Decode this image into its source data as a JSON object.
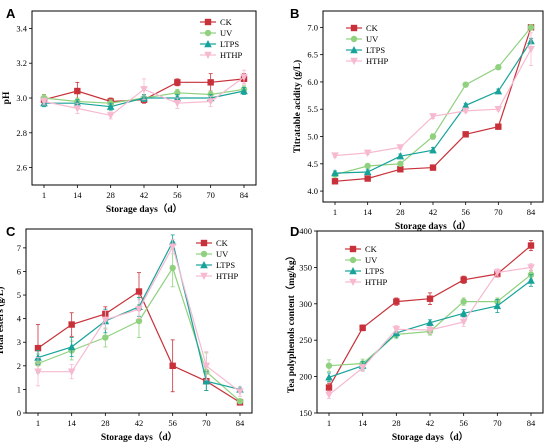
{
  "colors": {
    "CK": "#c8313a",
    "UV": "#8fd17e",
    "LTPS": "#18a39a",
    "HTHP": "#f7b9d0"
  },
  "chart_data": [
    {
      "type": "line",
      "panel": "A",
      "xlabel": "Storage days（d）",
      "ylabel": "pH",
      "x": [
        "1",
        "14",
        "28",
        "42",
        "56",
        "70",
        "84"
      ],
      "ylim": [
        2.5,
        3.5
      ],
      "yticks": [
        "2.6",
        "2.8",
        "3.0",
        "3.2",
        "3.4"
      ],
      "legend": "top-right",
      "series": [
        {
          "name": "CK",
          "values": [
            2.99,
            3.04,
            2.98,
            2.99,
            3.09,
            3.09,
            3.11
          ],
          "err": [
            0.03,
            0.05,
            0.02,
            0.02,
            0.02,
            0.05,
            0.03
          ]
        },
        {
          "name": "UV",
          "values": [
            3.0,
            2.98,
            2.97,
            3.0,
            3.03,
            3.02,
            3.05
          ],
          "err": [
            0.02,
            0.02,
            0.02,
            0.02,
            0.02,
            0.02,
            0.02
          ]
        },
        {
          "name": "LTPS",
          "values": [
            2.97,
            2.97,
            2.95,
            3.0,
            3.0,
            3.0,
            3.04
          ],
          "err": [
            0.02,
            0.02,
            0.02,
            0.02,
            0.02,
            0.02,
            0.02
          ]
        },
        {
          "name": "HTHP",
          "values": [
            2.98,
            2.94,
            2.9,
            3.05,
            2.97,
            2.98,
            3.12
          ],
          "err": [
            0.02,
            0.03,
            0.02,
            0.06,
            0.03,
            0.03,
            0.04
          ]
        }
      ]
    },
    {
      "type": "line",
      "panel": "B",
      "xlabel": "Storage days（d）",
      "ylabel": "Titratable acidity (g/L)",
      "x": [
        "1",
        "14",
        "28",
        "42",
        "56",
        "70",
        "84"
      ],
      "ylim": [
        3.8,
        7.3
      ],
      "yticks": [
        "4.0",
        "4.5",
        "5.0",
        "5.5",
        "6.0",
        "6.5",
        "7.0"
      ],
      "legend": "top-left",
      "series": [
        {
          "name": "CK",
          "values": [
            4.18,
            4.23,
            4.4,
            4.43,
            5.04,
            5.18,
            7.0
          ],
          "err": [
            0.04,
            0.04,
            0.04,
            0.04,
            0.04,
            0.04,
            0.05
          ]
        },
        {
          "name": "UV",
          "values": [
            4.3,
            4.46,
            4.5,
            5.0,
            5.95,
            6.27,
            7.0
          ],
          "err": [
            0.04,
            0.04,
            0.04,
            0.05,
            0.04,
            0.04,
            0.05
          ]
        },
        {
          "name": "LTPS",
          "values": [
            4.33,
            4.35,
            4.64,
            4.75,
            5.57,
            5.83,
            6.75
          ],
          "err": [
            0.04,
            0.04,
            0.04,
            0.05,
            0.04,
            0.04,
            0.05
          ]
        },
        {
          "name": "HTHP",
          "values": [
            4.65,
            4.7,
            4.8,
            5.37,
            5.47,
            5.5,
            6.6
          ],
          "err": [
            0.03,
            0.03,
            0.03,
            0.04,
            0.03,
            0.03,
            0.3
          ]
        }
      ]
    },
    {
      "type": "line",
      "panel": "C",
      "xlabel": "Storage days（d）",
      "ylabel": "Total esters (g/L)",
      "x": [
        "1",
        "14",
        "28",
        "42",
        "56",
        "70",
        "84"
      ],
      "ylim": [
        0,
        7.8
      ],
      "yticks": [
        "0",
        "1",
        "2",
        "3",
        "4",
        "5",
        "6",
        "7"
      ],
      "legend": "top-right",
      "series": [
        {
          "name": "CK",
          "values": [
            2.75,
            3.75,
            4.2,
            5.15,
            2.0,
            1.35,
            0.45
          ],
          "err": [
            1.0,
            0.5,
            0.3,
            0.8,
            1.1,
            0.4,
            0.1
          ]
        },
        {
          "name": "UV",
          "values": [
            2.1,
            2.65,
            3.2,
            3.9,
            6.15,
            1.75,
            0.5
          ],
          "err": [
            0.4,
            0.4,
            0.4,
            0.7,
            0.8,
            0.8,
            0.1
          ]
        },
        {
          "name": "LTPS",
          "values": [
            2.35,
            2.8,
            3.9,
            4.5,
            7.25,
            1.35,
            1.0
          ],
          "err": [
            0.3,
            0.4,
            0.5,
            0.4,
            0.3,
            0.4,
            0.1
          ]
        },
        {
          "name": "HTHP",
          "values": [
            1.75,
            1.75,
            3.95,
            4.4,
            7.05,
            2.0,
            0.9
          ],
          "err": [
            0.6,
            0.3,
            0.4,
            0.4,
            0.3,
            0.6,
            0.2
          ]
        }
      ]
    },
    {
      "type": "line",
      "panel": "D",
      "xlabel": "Storage days（d）",
      "ylabel": "Tea polyphenols content（mg/kg）",
      "x": [
        "1",
        "14",
        "28",
        "42",
        "56",
        "70",
        "84"
      ],
      "ylim": [
        150,
        400
      ],
      "yticks": [
        "150",
        "200",
        "250",
        "300",
        "350",
        "400"
      ],
      "legend": "top-left",
      "series": [
        {
          "name": "CK",
          "values": [
            185,
            267,
            303,
            307,
            333,
            341,
            380
          ],
          "err": [
            6,
            4,
            5,
            8,
            5,
            4,
            7
          ]
        },
        {
          "name": "UV",
          "values": [
            215,
            218,
            258,
            262,
            303,
            303,
            340
          ],
          "err": [
            8,
            6,
            6,
            5,
            5,
            5,
            6
          ]
        },
        {
          "name": "LTPS",
          "values": [
            199,
            215,
            260,
            274,
            287,
            297,
            332
          ],
          "err": [
            6,
            6,
            6,
            4,
            5,
            9,
            8
          ]
        },
        {
          "name": "HTHP",
          "values": [
            175,
            212,
            265,
            264,
            275,
            343,
            350
          ],
          "err": [
            5,
            5,
            5,
            5,
            6,
            5,
            5
          ]
        }
      ]
    }
  ]
}
